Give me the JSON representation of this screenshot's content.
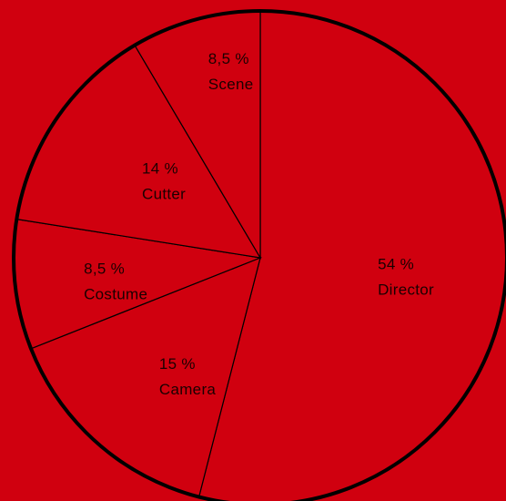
{
  "colors": {
    "background": "#d0000f",
    "slice_fill": "#d0000f",
    "outline": "#000000",
    "label_text": "#1a0000"
  },
  "chart_data": {
    "type": "pie",
    "title": "",
    "start_angle_deg": 0,
    "direction": "clockwise",
    "slices": [
      {
        "label": "Director",
        "value": 54,
        "value_label": "54 %"
      },
      {
        "label": "Camera",
        "value": 15,
        "value_label": "15 %"
      },
      {
        "label": "Costume",
        "value": 8.5,
        "value_label": "8,5 %"
      },
      {
        "label": "Cutter",
        "value": 14,
        "value_label": "14 %"
      },
      {
        "label": "Scene",
        "value": 8.5,
        "value_label": "8,5 %"
      }
    ]
  }
}
